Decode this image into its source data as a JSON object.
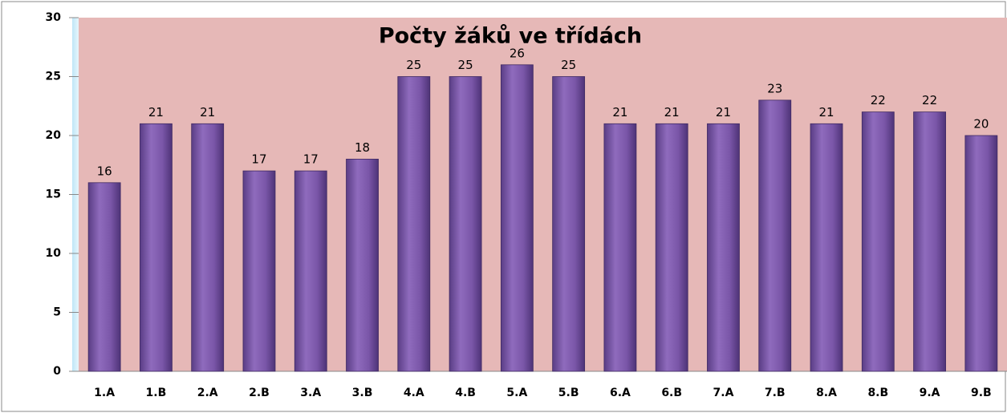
{
  "chart_data": {
    "type": "bar",
    "title": "Počty žáků ve třídách",
    "categories": [
      "1.A",
      "1.B",
      "2.A",
      "2.B",
      "3.A",
      "3.B",
      "4.A",
      "4.B",
      "5.A",
      "5.B",
      "6.A",
      "6.B",
      "7.A",
      "7.B",
      "8.A",
      "8.B",
      "9.A",
      "9.B"
    ],
    "values": [
      16,
      21,
      21,
      17,
      17,
      18,
      25,
      25,
      26,
      25,
      21,
      21,
      21,
      23,
      21,
      22,
      22,
      20
    ],
    "color": "#7e5aa8",
    "ylim": [
      0,
      30
    ],
    "yticks": [
      0,
      5,
      10,
      15,
      20,
      25,
      30
    ],
    "grid": false
  }
}
